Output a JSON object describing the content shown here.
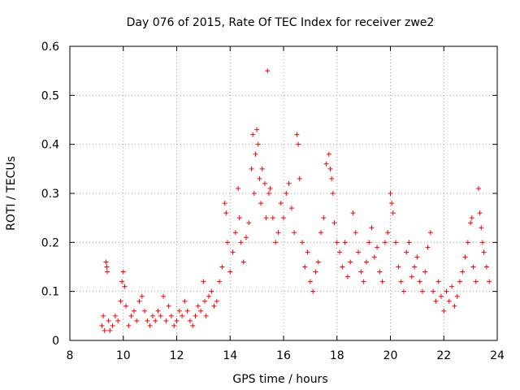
{
  "chart_data": {
    "type": "scatter",
    "title": "Day 076 of 2015, Rate Of TEC Index for receiver zwe2",
    "xlabel": "GPS time / hours",
    "ylabel": "ROTI / TECUs",
    "xlim": [
      8,
      24
    ],
    "ylim": [
      0,
      0.6
    ],
    "xticks": [
      8,
      10,
      12,
      14,
      16,
      18,
      20,
      22,
      24
    ],
    "yticks": [
      0,
      0.1,
      0.2,
      0.3,
      0.4,
      0.5,
      0.6
    ],
    "xtick_labels": [
      "8",
      "10",
      "12",
      "14",
      "16",
      "18",
      "20",
      "22",
      "24"
    ],
    "ytick_labels": [
      "0",
      "0.1",
      "0.2",
      "0.3",
      "0.4",
      "0.5",
      "0.6"
    ],
    "grid": true,
    "marker": "+",
    "color": "#ff0000",
    "series": [
      {
        "name": "ROTI",
        "points": [
          [
            9.2,
            0.03
          ],
          [
            9.25,
            0.05
          ],
          [
            9.3,
            0.02
          ],
          [
            9.35,
            0.16
          ],
          [
            9.38,
            0.15
          ],
          [
            9.4,
            0.14
          ],
          [
            9.45,
            0.04
          ],
          [
            9.5,
            0.02
          ],
          [
            9.6,
            0.03
          ],
          [
            9.7,
            0.05
          ],
          [
            9.8,
            0.04
          ],
          [
            9.9,
            0.08
          ],
          [
            9.95,
            0.12
          ],
          [
            10.0,
            0.14
          ],
          [
            10.05,
            0.11
          ],
          [
            10.1,
            0.07
          ],
          [
            10.2,
            0.03
          ],
          [
            10.3,
            0.05
          ],
          [
            10.4,
            0.06
          ],
          [
            10.5,
            0.04
          ],
          [
            10.6,
            0.08
          ],
          [
            10.7,
            0.09
          ],
          [
            10.8,
            0.06
          ],
          [
            10.9,
            0.04
          ],
          [
            11.0,
            0.03
          ],
          [
            11.1,
            0.05
          ],
          [
            11.2,
            0.04
          ],
          [
            11.3,
            0.06
          ],
          [
            11.4,
            0.05
          ],
          [
            11.5,
            0.09
          ],
          [
            11.6,
            0.04
          ],
          [
            11.7,
            0.07
          ],
          [
            11.8,
            0.05
          ],
          [
            11.9,
            0.03
          ],
          [
            12.0,
            0.04
          ],
          [
            12.1,
            0.06
          ],
          [
            12.2,
            0.05
          ],
          [
            12.3,
            0.08
          ],
          [
            12.4,
            0.06
          ],
          [
            12.5,
            0.04
          ],
          [
            12.6,
            0.03
          ],
          [
            12.7,
            0.05
          ],
          [
            12.8,
            0.07
          ],
          [
            12.9,
            0.06
          ],
          [
            13.0,
            0.12
          ],
          [
            13.05,
            0.08
          ],
          [
            13.1,
            0.05
          ],
          [
            13.2,
            0.09
          ],
          [
            13.3,
            0.1
          ],
          [
            13.4,
            0.07
          ],
          [
            13.5,
            0.08
          ],
          [
            13.6,
            0.12
          ],
          [
            13.7,
            0.15
          ],
          [
            13.8,
            0.28
          ],
          [
            13.85,
            0.26
          ],
          [
            13.9,
            0.2
          ],
          [
            14.0,
            0.14
          ],
          [
            14.1,
            0.18
          ],
          [
            14.2,
            0.22
          ],
          [
            14.3,
            0.31
          ],
          [
            14.35,
            0.25
          ],
          [
            14.4,
            0.2
          ],
          [
            14.5,
            0.16
          ],
          [
            14.6,
            0.21
          ],
          [
            14.7,
            0.24
          ],
          [
            14.8,
            0.35
          ],
          [
            14.85,
            0.42
          ],
          [
            14.9,
            0.3
          ],
          [
            14.95,
            0.38
          ],
          [
            15.0,
            0.43
          ],
          [
            15.05,
            0.4
          ],
          [
            15.1,
            0.33
          ],
          [
            15.15,
            0.28
          ],
          [
            15.2,
            0.35
          ],
          [
            15.3,
            0.32
          ],
          [
            15.35,
            0.25
          ],
          [
            15.4,
            0.55
          ],
          [
            15.45,
            0.3
          ],
          [
            15.5,
            0.31
          ],
          [
            15.6,
            0.25
          ],
          [
            15.7,
            0.2
          ],
          [
            15.8,
            0.22
          ],
          [
            15.9,
            0.28
          ],
          [
            16.0,
            0.25
          ],
          [
            16.1,
            0.3
          ],
          [
            16.2,
            0.32
          ],
          [
            16.3,
            0.27
          ],
          [
            16.4,
            0.22
          ],
          [
            16.5,
            0.42
          ],
          [
            16.55,
            0.4
          ],
          [
            16.6,
            0.33
          ],
          [
            16.7,
            0.2
          ],
          [
            16.8,
            0.15
          ],
          [
            16.9,
            0.18
          ],
          [
            17.0,
            0.12
          ],
          [
            17.1,
            0.1
          ],
          [
            17.2,
            0.14
          ],
          [
            17.3,
            0.16
          ],
          [
            17.4,
            0.22
          ],
          [
            17.5,
            0.25
          ],
          [
            17.6,
            0.36
          ],
          [
            17.7,
            0.38
          ],
          [
            17.75,
            0.35
          ],
          [
            17.8,
            0.33
          ],
          [
            17.85,
            0.3
          ],
          [
            17.9,
            0.24
          ],
          [
            18.0,
            0.2
          ],
          [
            18.1,
            0.18
          ],
          [
            18.2,
            0.15
          ],
          [
            18.3,
            0.2
          ],
          [
            18.4,
            0.13
          ],
          [
            18.5,
            0.16
          ],
          [
            18.6,
            0.26
          ],
          [
            18.7,
            0.22
          ],
          [
            18.8,
            0.18
          ],
          [
            18.9,
            0.14
          ],
          [
            19.0,
            0.12
          ],
          [
            19.1,
            0.16
          ],
          [
            19.2,
            0.2
          ],
          [
            19.3,
            0.23
          ],
          [
            19.4,
            0.17
          ],
          [
            19.5,
            0.19
          ],
          [
            19.6,
            0.14
          ],
          [
            19.7,
            0.12
          ],
          [
            19.8,
            0.2
          ],
          [
            19.9,
            0.22
          ],
          [
            20.0,
            0.3
          ],
          [
            20.05,
            0.28
          ],
          [
            20.1,
            0.26
          ],
          [
            20.2,
            0.2
          ],
          [
            20.3,
            0.15
          ],
          [
            20.4,
            0.12
          ],
          [
            20.5,
            0.1
          ],
          [
            20.6,
            0.18
          ],
          [
            20.7,
            0.2
          ],
          [
            20.8,
            0.13
          ],
          [
            20.9,
            0.15
          ],
          [
            21.0,
            0.17
          ],
          [
            21.1,
            0.12
          ],
          [
            21.2,
            0.1
          ],
          [
            21.3,
            0.14
          ],
          [
            21.4,
            0.19
          ],
          [
            21.5,
            0.22
          ],
          [
            21.6,
            0.1
          ],
          [
            21.7,
            0.08
          ],
          [
            21.8,
            0.12
          ],
          [
            21.9,
            0.09
          ],
          [
            22.0,
            0.06
          ],
          [
            22.1,
            0.1
          ],
          [
            22.2,
            0.08
          ],
          [
            22.3,
            0.11
          ],
          [
            22.4,
            0.07
          ],
          [
            22.5,
            0.09
          ],
          [
            22.6,
            0.12
          ],
          [
            22.7,
            0.14
          ],
          [
            22.8,
            0.17
          ],
          [
            22.9,
            0.2
          ],
          [
            23.0,
            0.24
          ],
          [
            23.05,
            0.25
          ],
          [
            23.1,
            0.15
          ],
          [
            23.2,
            0.12
          ],
          [
            23.3,
            0.31
          ],
          [
            23.35,
            0.26
          ],
          [
            23.4,
            0.23
          ],
          [
            23.45,
            0.2
          ],
          [
            23.5,
            0.18
          ],
          [
            23.6,
            0.15
          ],
          [
            23.7,
            0.12
          ]
        ]
      }
    ]
  }
}
